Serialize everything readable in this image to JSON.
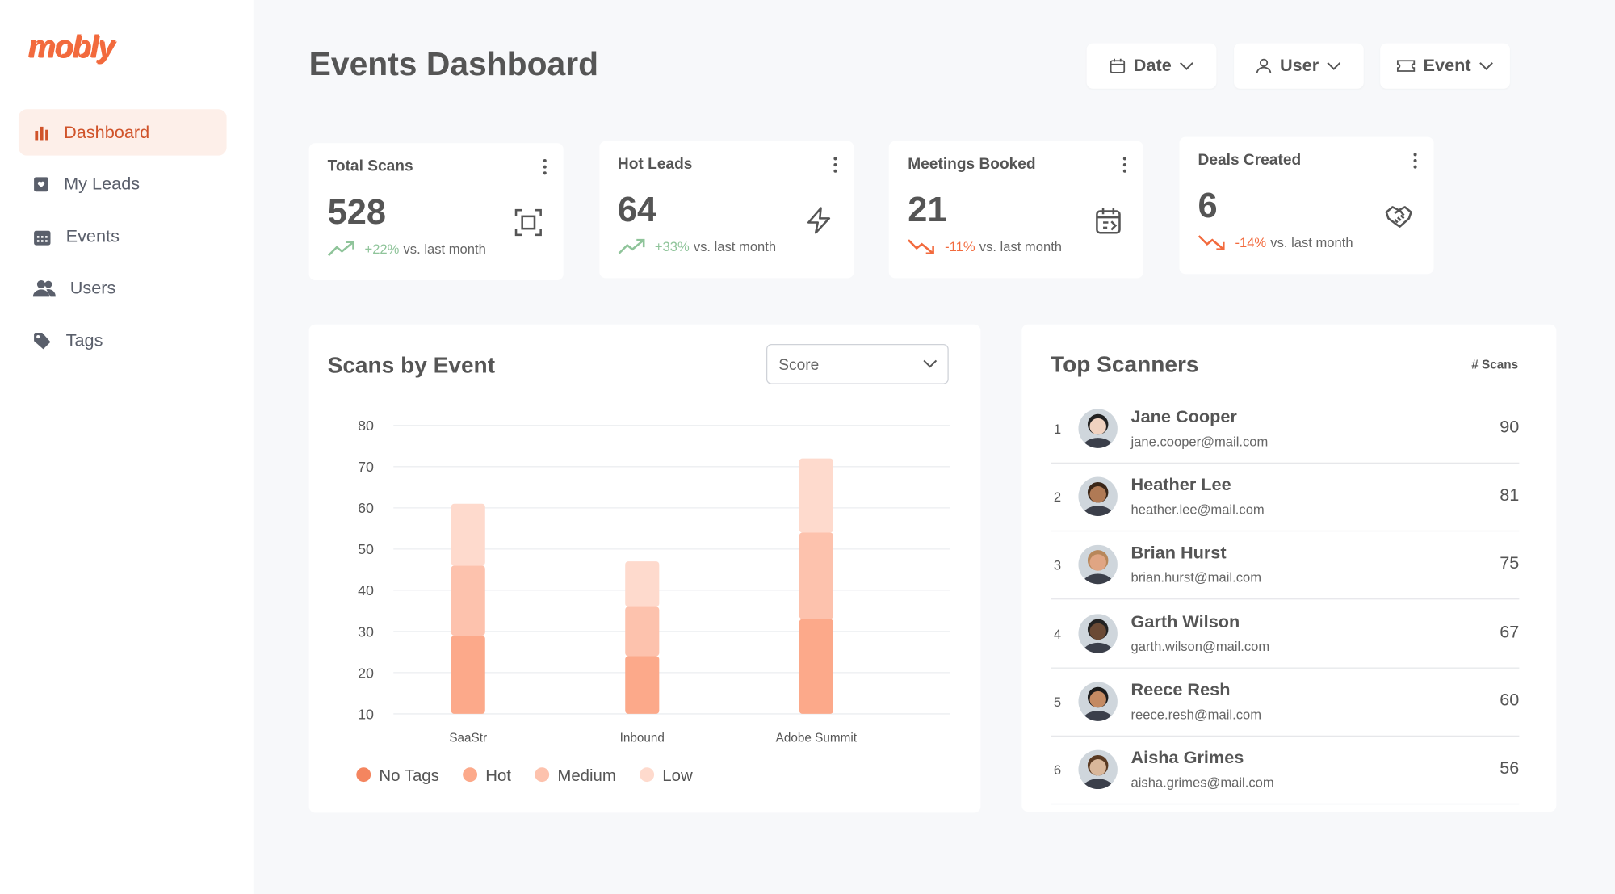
{
  "sidebar": {
    "logo": "mobly",
    "nav": [
      "Dashboard",
      "My Leads",
      "Events",
      "Users",
      "Tags"
    ]
  },
  "header": {
    "title": "Events Dashboard",
    "filters": [
      "Date",
      "User",
      "Event"
    ]
  },
  "kpis": [
    {
      "title": "Total Scans",
      "value": 528,
      "change": "+22%",
      "trend": "up",
      "note": "vs. last month"
    },
    {
      "title": "Hot Leads",
      "value": 64,
      "change": "+33%",
      "trend": "up",
      "note": "vs. last month"
    },
    {
      "title": "Meetings Booked",
      "value": 21,
      "change": "-11%",
      "trend": "down",
      "note": "vs. last month"
    },
    {
      "title": "Deals Created",
      "value": 6,
      "change": "-14%",
      "trend": "down",
      "note": "vs. last month"
    }
  ],
  "chart_data": {
    "type": "bar",
    "stacked": true,
    "title": "Scans by Event",
    "dropdown": "Score",
    "categories": [
      "SaaStr",
      "Inbound",
      "Adobe Summit"
    ],
    "series": [
      {
        "name": "No Tags",
        "color": "#f4855f",
        "values": [
          null,
          null,
          null
        ]
      },
      {
        "name": "Hot",
        "color": "#fca98a",
        "values": [
          29,
          24,
          33
        ]
      },
      {
        "name": "Medium",
        "color": "#fdc2ad",
        "values": [
          17,
          12,
          21
        ]
      },
      {
        "name": "Low",
        "color": "#fedacd",
        "values": [
          15,
          11,
          18
        ]
      }
    ],
    "ylim": [
      10,
      80
    ],
    "yticks": [
      10,
      20,
      30,
      40,
      50,
      60,
      70,
      80
    ],
    "grid": true,
    "legend": "bottom"
  },
  "scanners": {
    "title": "Top Scanners",
    "column": "# Scans",
    "rows": [
      {
        "rank": 1,
        "name": "Jane Cooper",
        "email": "jane.cooper@mail.com",
        "scans": 90
      },
      {
        "rank": 2,
        "name": "Heather Lee",
        "email": "heather.lee@mail.com",
        "scans": 81
      },
      {
        "rank": 3,
        "name": "Brian Hurst",
        "email": "brian.hurst@mail.com",
        "scans": 75
      },
      {
        "rank": 4,
        "name": "Garth Wilson",
        "email": "garth.wilson@mail.com",
        "scans": 67
      },
      {
        "rank": 5,
        "name": "Reece Resh",
        "email": "reece.resh@mail.com",
        "scans": 60
      },
      {
        "rank": 6,
        "name": "Aisha Grimes",
        "email": "aisha.grimes@mail.com",
        "scans": 56
      }
    ]
  }
}
